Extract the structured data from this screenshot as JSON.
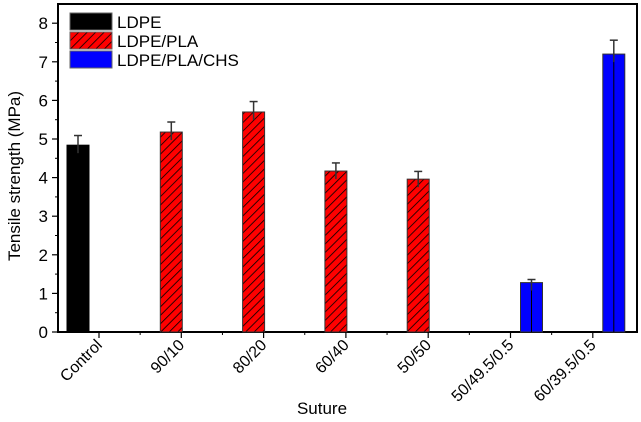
{
  "chart_data": {
    "type": "bar",
    "title": "",
    "xlabel": "Suture",
    "ylabel": "Tensile strength (MPa)",
    "ylim": [
      0,
      8.5
    ],
    "yticks": [
      0,
      1,
      2,
      3,
      4,
      5,
      6,
      7,
      8
    ],
    "grid": false,
    "legend_position": "upper left",
    "categories": [
      "Control",
      "90/10",
      "80/20",
      "60/40",
      "50/50",
      "50/49.5/0.5",
      "60/39.5/0.5"
    ],
    "series": [
      {
        "name": "LDPE",
        "color": "#000000",
        "pattern": "solid",
        "values": [
          4.84,
          null,
          null,
          null,
          null,
          null,
          null
        ],
        "errors": [
          0.25,
          null,
          null,
          null,
          null,
          null,
          null
        ]
      },
      {
        "name": "LDPE/PLA",
        "color": "#ff0000",
        "pattern": "hatched",
        "values": [
          null,
          5.18,
          5.7,
          4.17,
          3.96,
          null,
          null
        ],
        "errors": [
          null,
          0.26,
          0.27,
          0.21,
          0.2,
          null,
          null
        ]
      },
      {
        "name": "LDPE/PLA/CHS",
        "color": "#0000ff",
        "pattern": "solid",
        "values": [
          null,
          null,
          null,
          null,
          null,
          1.28,
          7.2
        ],
        "errors": [
          null,
          null,
          null,
          null,
          null,
          0.08,
          0.36
        ]
      }
    ]
  }
}
